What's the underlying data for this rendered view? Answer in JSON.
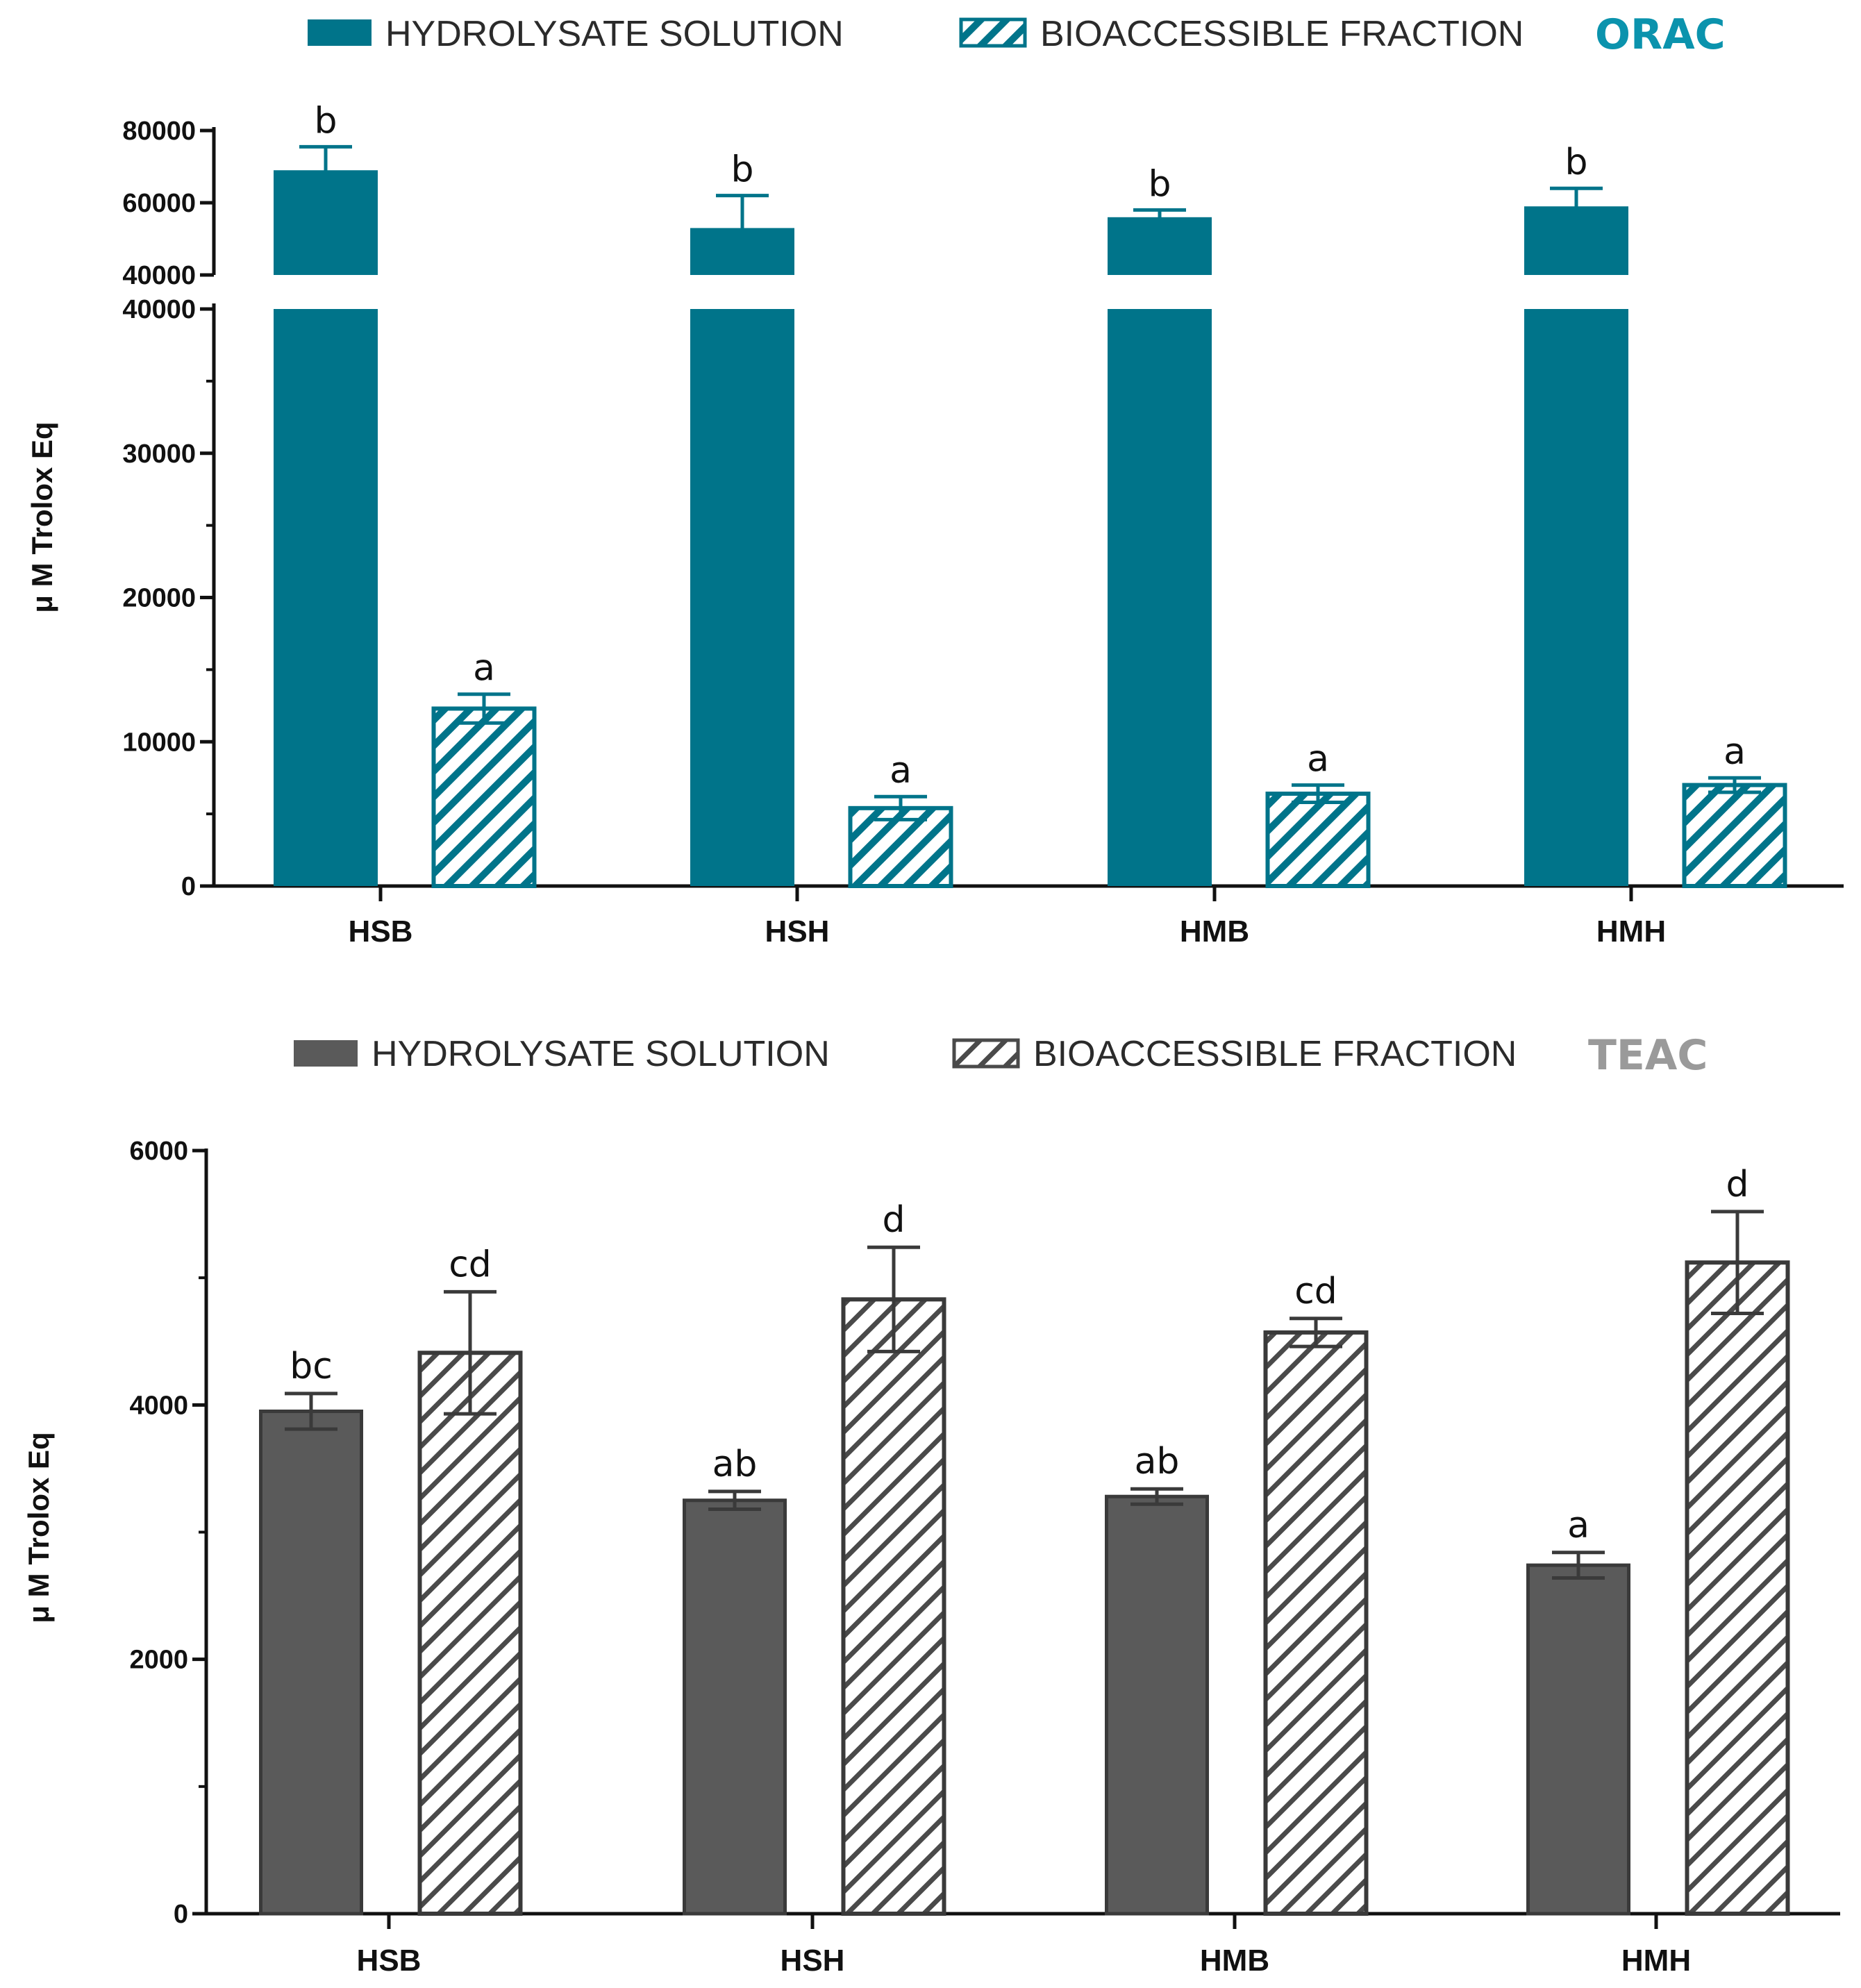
{
  "chart_data": [
    {
      "type": "bar",
      "chart_name": "ORAC",
      "categories": [
        "HSB",
        "HSH",
        "HMB",
        "HMH"
      ],
      "ylabel": "μ M Trolox Eq",
      "xlabel": "",
      "axis_break": {
        "lower": [
          0,
          40000
        ],
        "upper": [
          40000,
          80000
        ]
      },
      "lower_ticks": [
        "0",
        "10000",
        "20000",
        "30000",
        "40000"
      ],
      "upper_ticks": [
        "40000",
        "60000",
        "80000"
      ],
      "series": [
        {
          "name": "HYDROLYSATE SOLUTION",
          "pattern": "solid",
          "values": [
            69000,
            53000,
            56000,
            59000
          ],
          "errors": [
            6500,
            9000,
            2000,
            5000
          ],
          "letters": [
            "b",
            "b",
            "b",
            "b"
          ]
        },
        {
          "name": "BIOACCESSIBLE FRACTION",
          "pattern": "hatched",
          "values": [
            12300,
            5400,
            6400,
            7000
          ],
          "errors": [
            1000,
            800,
            600,
            500
          ],
          "letters": [
            "a",
            "a",
            "a",
            "a"
          ]
        }
      ],
      "colors": {
        "fill": "#00748a",
        "name": "#0b93ad"
      }
    },
    {
      "type": "bar",
      "chart_name": "TEAC",
      "categories": [
        "HSB",
        "HSH",
        "HMB",
        "HMH"
      ],
      "ylabel": "μ M Trolox Eq",
      "xlabel": "",
      "ylim": [
        0,
        6000
      ],
      "ticks": [
        "0",
        "2000",
        "4000",
        "6000"
      ],
      "series": [
        {
          "name": "HYDROLYSATE SOLUTION",
          "pattern": "solid",
          "values": [
            3950,
            3250,
            3280,
            2740
          ],
          "errors": [
            140,
            70,
            60,
            100
          ],
          "letters": [
            "bc",
            "ab",
            "ab",
            "a"
          ]
        },
        {
          "name": "BIOACCESSIBLE FRACTION",
          "pattern": "hatched",
          "values": [
            4410,
            4830,
            4570,
            5120
          ],
          "errors": [
            480,
            410,
            110,
            400
          ],
          "letters": [
            "cd",
            "d",
            "cd",
            "d"
          ]
        }
      ],
      "colors": {
        "fill": "#5a5a5a",
        "name": "#9a9a9a"
      }
    }
  ]
}
